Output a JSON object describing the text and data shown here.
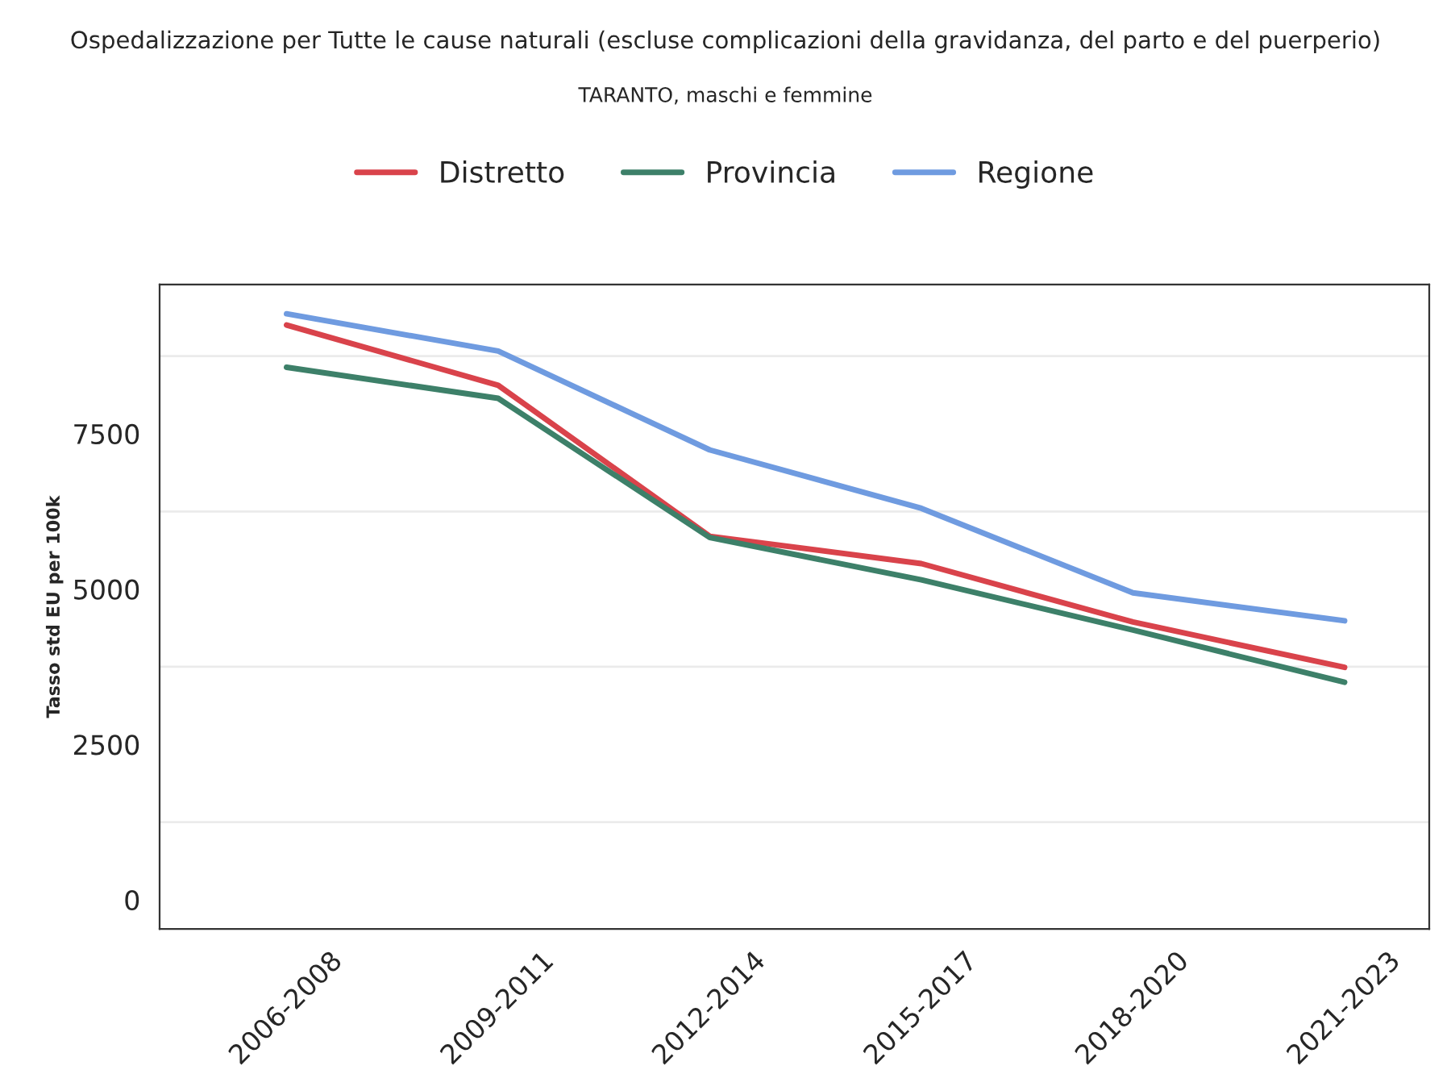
{
  "chart_data": {
    "type": "line",
    "title": "Ospedalizzazione per Tutte le cause naturali (escluse complicazioni della gravidanza, del parto e del puerperio)",
    "subtitle": "TARANTO, maschi e femmine",
    "ylabel": "Tasso std EU per 100k",
    "categories": [
      "2006-2008",
      "2009-2011",
      "2012-2014",
      "2015-2017",
      "2018-2020",
      "2021-2023"
    ],
    "series": [
      {
        "name": "Distretto",
        "color": "#d9434b",
        "values": [
          9250,
          8280,
          5850,
          5410,
          4470,
          3740
        ]
      },
      {
        "name": "Provincia",
        "color": "#3d8069",
        "values": [
          8570,
          8070,
          5830,
          5150,
          4340,
          3500
        ]
      },
      {
        "name": "Regione",
        "color": "#6f9be0",
        "values": [
          9430,
          8830,
          7240,
          6300,
          4940,
          4490
        ]
      }
    ],
    "ylim": [
      -470,
      9900
    ],
    "yticks": [
      0,
      {
        "value": 1250,
        "label": null
      },
      2500,
      {
        "value": 3750,
        "label": null
      },
      5000,
      {
        "value": 6250,
        "label": null
      },
      7500,
      {
        "value": 8750,
        "label": null
      }
    ],
    "grid": "y",
    "legend": "top",
    "line_style": "solid",
    "marker": "none"
  }
}
